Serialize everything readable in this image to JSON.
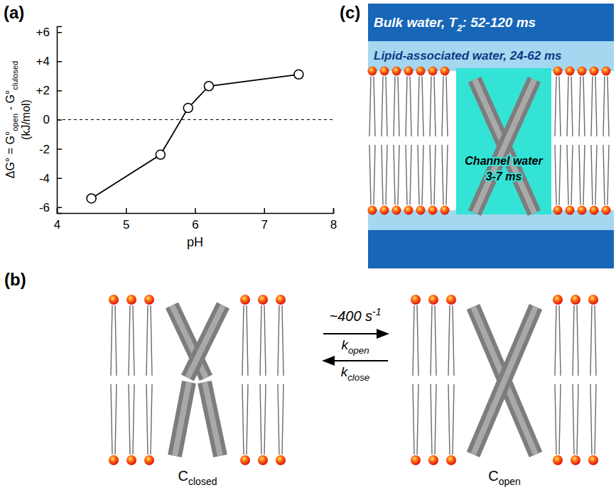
{
  "chart_data": {
    "type": "line",
    "xlabel": "pH",
    "ylabel": [
      [
        {
          "text": "ΔG° = G°"
        },
        {
          "text": "open",
          "style": "sub"
        },
        {
          "text": " - G°"
        },
        {
          "text": "clulosed",
          "style": "sub"
        }
      ],
      [
        {
          "text": "(kJ/mol)"
        }
      ]
    ],
    "x": [
      4.5,
      5.5,
      5.9,
      6.2,
      7.5
    ],
    "values": [
      -5.4,
      -2.4,
      0.8,
      2.3,
      3.1
    ],
    "color": "#000000",
    "marker": "circle",
    "line_style": "solid",
    "hline": 0,
    "xlim": [
      4,
      8
    ],
    "xticks": [
      4,
      5,
      6,
      7,
      8
    ],
    "ylim": [
      -6.4,
      6.4
    ],
    "yticks": [
      {
        "value": 6,
        "label": "+6"
      },
      {
        "value": 4,
        "label": "+4"
      },
      {
        "value": 2,
        "label": "+2"
      },
      0,
      -2,
      -4,
      -6
    ],
    "grid": false
  },
  "panel_labels": [
    "(a)",
    "(b)",
    "(c)"
  ],
  "equilibrium_diagram": {
    "rate": [
      {
        "text": "~400 s"
      },
      {
        "text": "-1",
        "style": "sup"
      }
    ],
    "forward": [
      {
        "text": "k"
      },
      {
        "text": "open",
        "style": "sub"
      }
    ],
    "backward": [
      {
        "text": "k"
      },
      {
        "text": "close",
        "style": "sub"
      }
    ],
    "states": [
      [
        {
          "text": "C"
        },
        {
          "text": "closed",
          "style": "sub"
        }
      ],
      [
        {
          "text": "C"
        },
        {
          "text": "open",
          "style": "sub"
        }
      ]
    ]
  },
  "membrane_diagram": {
    "bulk_water": [
      {
        "text": "Bulk water, T"
      },
      {
        "text": "2",
        "style": "sub"
      },
      {
        "text": ": 52-120 ms"
      }
    ],
    "lipid_water": "Lipid-associated water, 24-62 ms",
    "channel_water": [
      "Channel water",
      "3-7 ms"
    ]
  }
}
